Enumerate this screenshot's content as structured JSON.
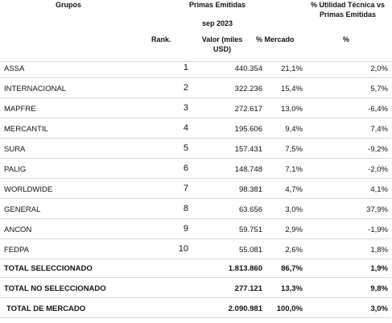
{
  "header": {
    "groups": "Grupos",
    "premiums": "Primas Emitidas",
    "period": "sep 2023",
    "utility_title": "% Utilidad Técnica vs Primas Emitidas",
    "rank": "Rank.",
    "value": "Valor (miles USD)",
    "share": "% Mercado",
    "utility": "%"
  },
  "rows": [
    {
      "group": "ASSA",
      "rank": 1,
      "value": "440.354",
      "share": "21,1%",
      "margin": "2,0%"
    },
    {
      "group": "INTERNACIONAL",
      "rank": 2,
      "value": "322.236",
      "share": "15,4%",
      "margin": "5,7%"
    },
    {
      "group": "MAPFRE",
      "rank": 3,
      "value": "272.617",
      "share": "13,0%",
      "margin": "-6,4%"
    },
    {
      "group": "MERCANTIL",
      "rank": 4,
      "value": "195.606",
      "share": "9,4%",
      "margin": "7,4%"
    },
    {
      "group": "SURA",
      "rank": 5,
      "value": "157.431",
      "share": "7,5%",
      "margin": "-9,2%"
    },
    {
      "group": "PALIG",
      "rank": 6,
      "value": "148.748",
      "share": "7,1%",
      "margin": "-2,0%"
    },
    {
      "group": "WORLDWIDE",
      "rank": 7,
      "value": "98.381",
      "share": "4,7%",
      "margin": "4,1%"
    },
    {
      "group": "GENERAL",
      "rank": 8,
      "value": "63.656",
      "share": "3,0%",
      "margin": "37,9%"
    },
    {
      "group": "ANCON",
      "rank": 9,
      "value": "59.751",
      "share": "2,9%",
      "margin": "-1,9%"
    },
    {
      "group": "FEDPA",
      "rank": 10,
      "value": "55.081",
      "share": "2,6%",
      "margin": "1,8%"
    }
  ],
  "totals": [
    {
      "group": "TOTAL SELECCIONADO",
      "value": "1.813.860",
      "share": "86,7%",
      "margin": "1,9%"
    },
    {
      "group": "TOTAL NO SELECCIONADO",
      "value": "277.121",
      "share": "13,3%",
      "margin": "9,8%"
    },
    {
      "group": "TOTAL DE MERCADO",
      "value": "2.090.981",
      "share": "100,0%",
      "margin": "3,0%"
    }
  ]
}
